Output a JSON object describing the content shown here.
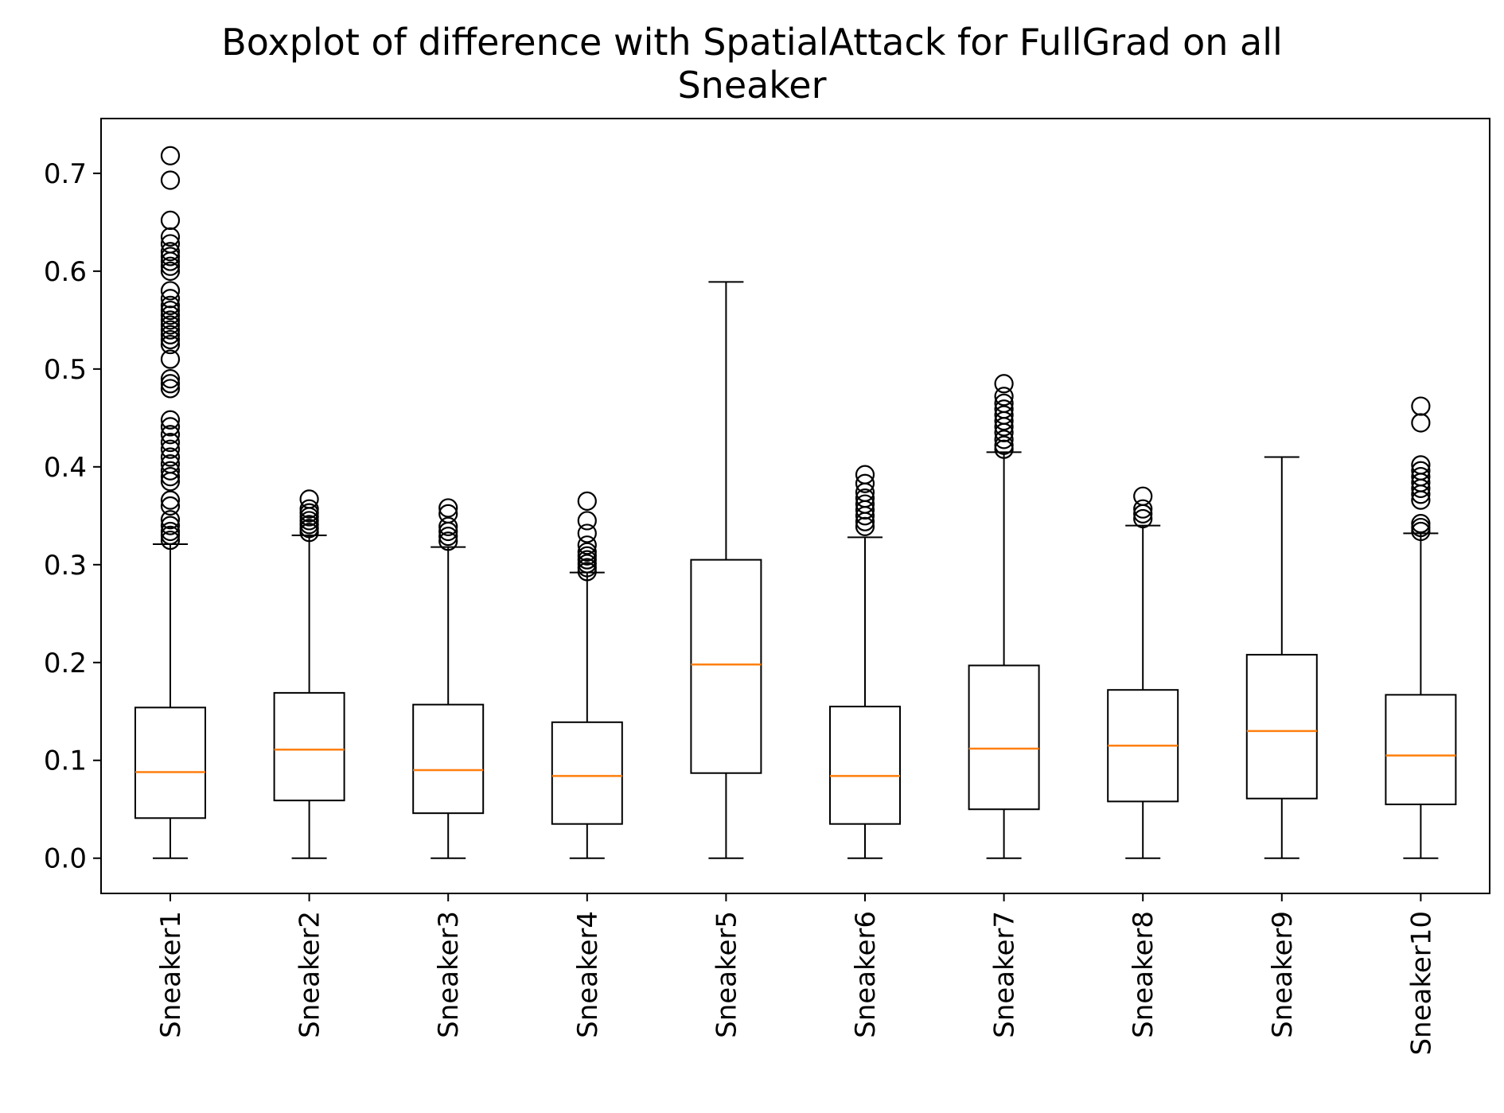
{
  "chart_data": {
    "type": "boxplot",
    "title_line1": "Boxplot of difference with SpatialAttack for FullGrad on all",
    "title_line2": "Sneaker",
    "xlabel": "",
    "ylabel": "",
    "ylim": [
      -0.036,
      0.756
    ],
    "yticks": [
      "0.0",
      "0.1",
      "0.2",
      "0.3",
      "0.4",
      "0.5",
      "0.6",
      "0.7"
    ],
    "grid": false,
    "colors": {
      "box": "#000000",
      "median": "#ff7f0e",
      "flier": "#000000"
    },
    "categories": [
      "Sneaker1",
      "Sneaker2",
      "Sneaker3",
      "Sneaker4",
      "Sneaker5",
      "Sneaker6",
      "Sneaker7",
      "Sneaker8",
      "Sneaker9",
      "Sneaker10"
    ],
    "boxes": [
      {
        "whisker_low": 0.0,
        "q1": 0.041,
        "median": 0.088,
        "q3": 0.154,
        "whisker_high": 0.321,
        "fliers": [
          0.325,
          0.33,
          0.334,
          0.34,
          0.346,
          0.36,
          0.366,
          0.385,
          0.39,
          0.396,
          0.403,
          0.41,
          0.418,
          0.425,
          0.433,
          0.441,
          0.448,
          0.48,
          0.485,
          0.49,
          0.51,
          0.525,
          0.53,
          0.535,
          0.54,
          0.545,
          0.55,
          0.555,
          0.56,
          0.565,
          0.572,
          0.58,
          0.6,
          0.605,
          0.61,
          0.615,
          0.62,
          0.628,
          0.635,
          0.652,
          0.693,
          0.718
        ]
      },
      {
        "whisker_low": 0.0,
        "q1": 0.059,
        "median": 0.111,
        "q3": 0.169,
        "whisker_high": 0.33,
        "fliers": [
          0.333,
          0.337,
          0.341,
          0.345,
          0.349,
          0.353,
          0.357,
          0.367
        ]
      },
      {
        "whisker_low": 0.0,
        "q1": 0.046,
        "median": 0.09,
        "q3": 0.157,
        "whisker_high": 0.318,
        "fliers": [
          0.324,
          0.329,
          0.334,
          0.339,
          0.352,
          0.358
        ]
      },
      {
        "whisker_low": 0.0,
        "q1": 0.035,
        "median": 0.084,
        "q3": 0.139,
        "whisker_high": 0.292,
        "fliers": [
          0.293,
          0.297,
          0.301,
          0.305,
          0.309,
          0.313,
          0.32,
          0.332,
          0.345,
          0.365
        ]
      },
      {
        "whisker_low": 0.0,
        "q1": 0.087,
        "median": 0.198,
        "q3": 0.305,
        "whisker_high": 0.589,
        "fliers": []
      },
      {
        "whisker_low": 0.0,
        "q1": 0.035,
        "median": 0.084,
        "q3": 0.155,
        "whisker_high": 0.328,
        "fliers": [
          0.339,
          0.344,
          0.35,
          0.356,
          0.362,
          0.368,
          0.374,
          0.383,
          0.392
        ]
      },
      {
        "whisker_low": 0.0,
        "q1": 0.05,
        "median": 0.112,
        "q3": 0.197,
        "whisker_high": 0.415,
        "fliers": [
          0.418,
          0.422,
          0.428,
          0.435,
          0.441,
          0.447,
          0.453,
          0.459,
          0.465,
          0.472,
          0.485
        ]
      },
      {
        "whisker_low": 0.0,
        "q1": 0.058,
        "median": 0.115,
        "q3": 0.172,
        "whisker_high": 0.34,
        "fliers": [
          0.347,
          0.352,
          0.357,
          0.37
        ]
      },
      {
        "whisker_low": 0.0,
        "q1": 0.061,
        "median": 0.13,
        "q3": 0.208,
        "whisker_high": 0.41,
        "fliers": []
      },
      {
        "whisker_low": 0.0,
        "q1": 0.055,
        "median": 0.105,
        "q3": 0.167,
        "whisker_high": 0.332,
        "fliers": [
          0.334,
          0.338,
          0.342,
          0.366,
          0.372,
          0.378,
          0.384,
          0.39,
          0.396,
          0.402,
          0.445,
          0.462
        ]
      }
    ]
  }
}
